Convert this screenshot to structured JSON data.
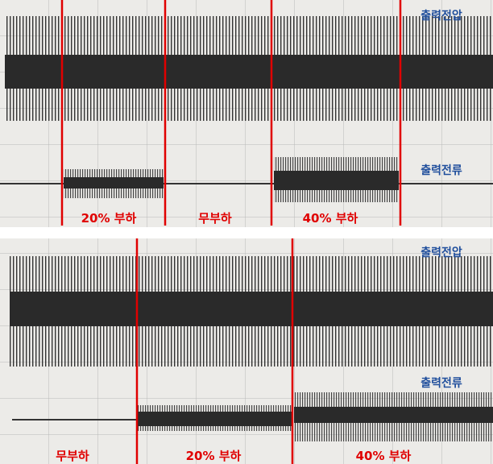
{
  "panels": [
    {
      "voltage_label": "출력전압",
      "current_label": "출력전류",
      "segments": [
        "20% 부하",
        "무부하",
        "40% 부하"
      ]
    },
    {
      "voltage_label": "출력전압",
      "current_label": "출력전류",
      "segments": [
        "무부하",
        "20% 부하",
        "40% 부하"
      ]
    }
  ]
}
